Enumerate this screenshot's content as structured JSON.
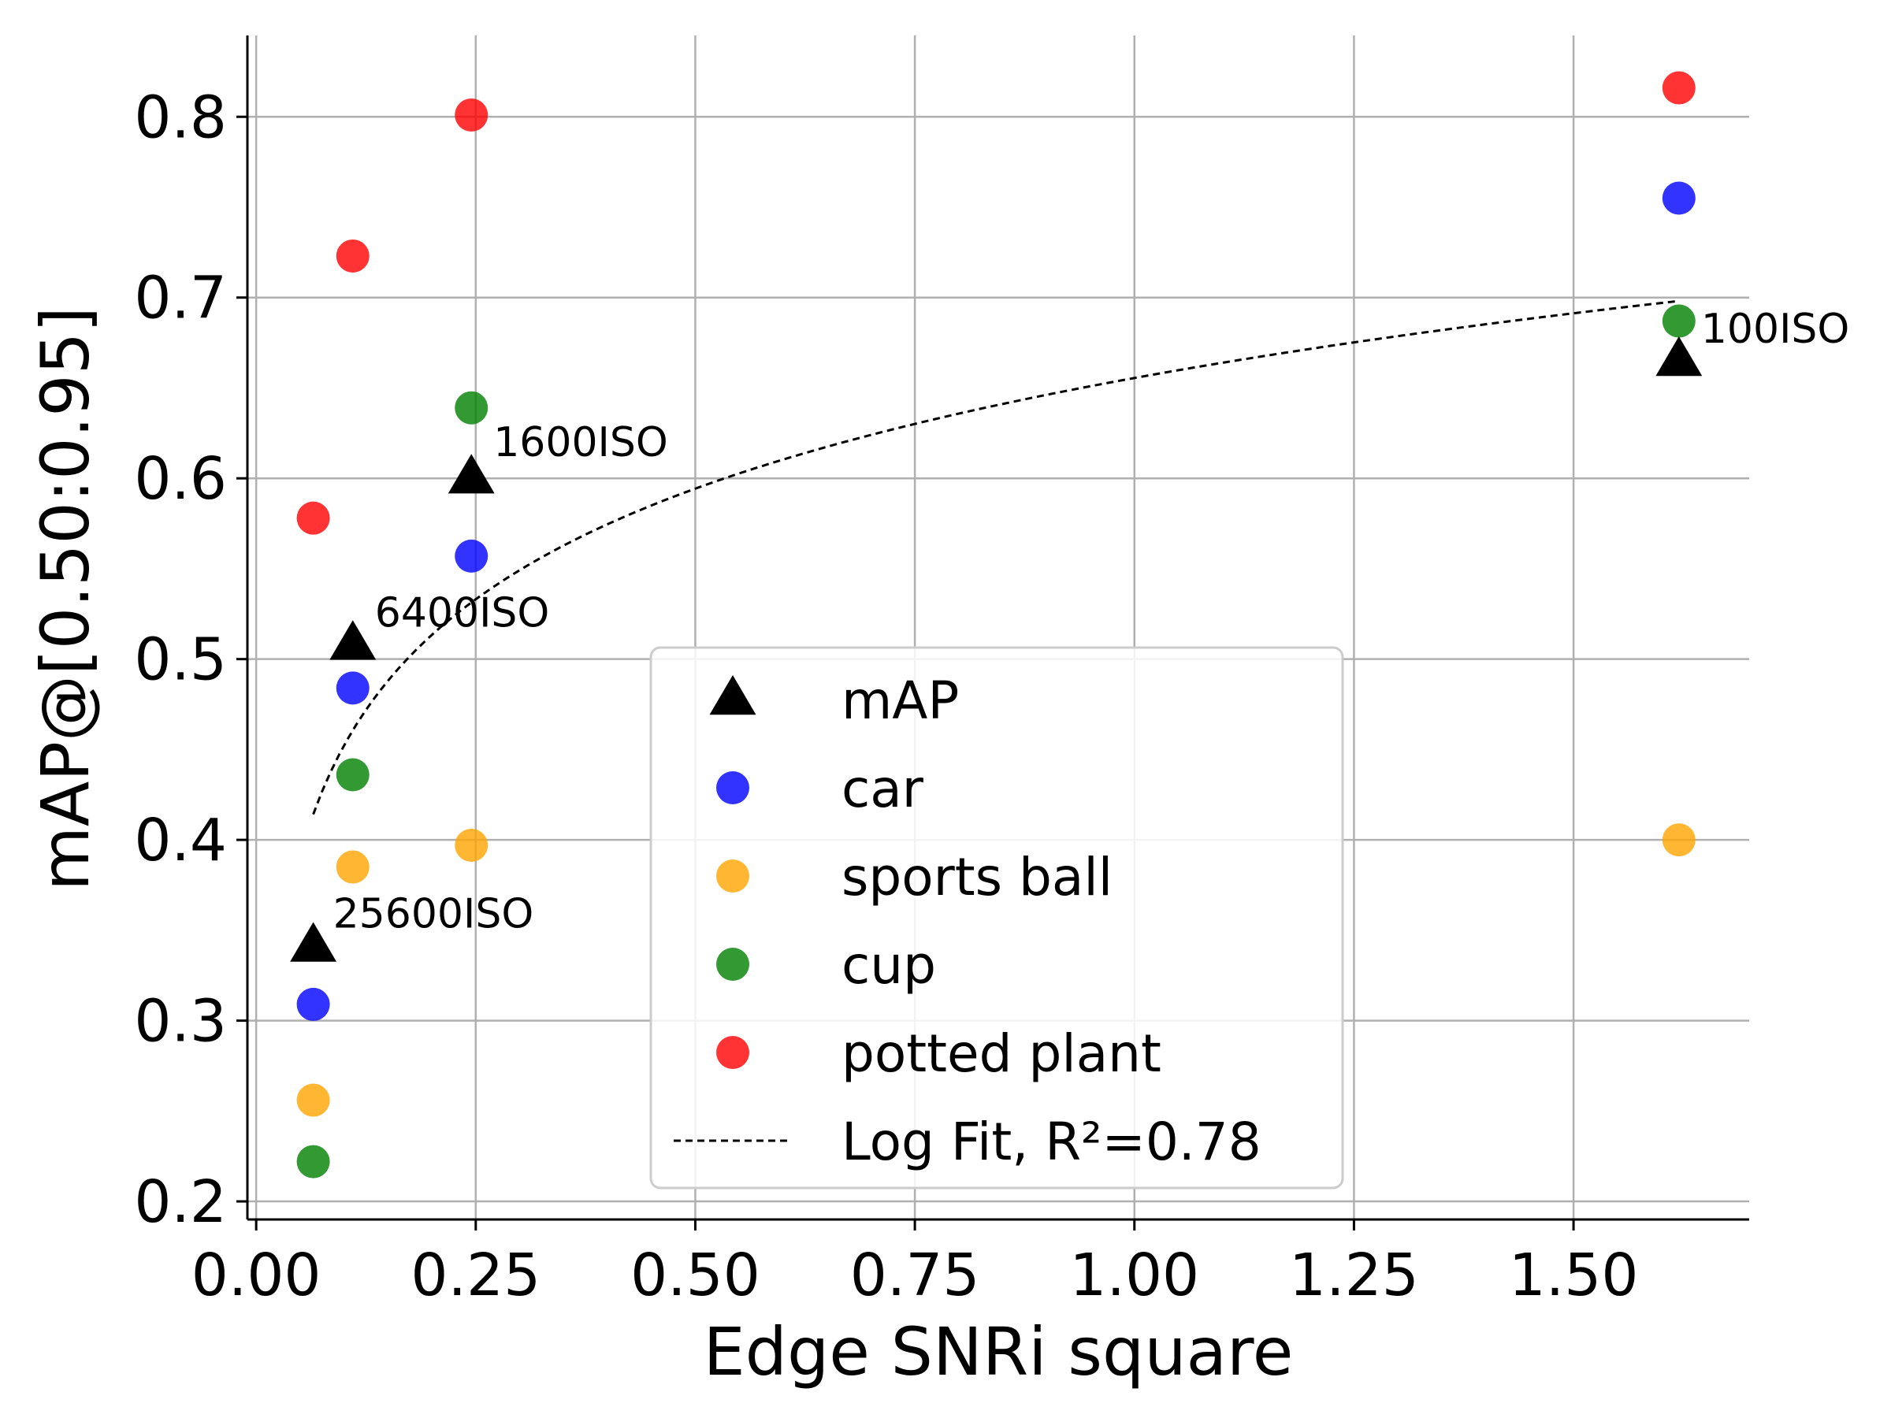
{
  "chart_data": {
    "type": "scatter",
    "title": "",
    "xlabel": "Edge SNRi square",
    "ylabel": "mAP@[0.50:0.95]",
    "xlim": [
      -0.01,
      1.7
    ],
    "ylim": [
      0.19,
      0.845
    ],
    "xticks": [
      0.0,
      0.25,
      0.5,
      0.75,
      1.0,
      1.25,
      1.5
    ],
    "xtick_labels": [
      "0.00",
      "0.25",
      "0.50",
      "0.75",
      "1.00",
      "1.25",
      "1.50"
    ],
    "yticks": [
      0.2,
      0.3,
      0.4,
      0.5,
      0.6,
      0.7,
      0.8
    ],
    "ytick_labels": [
      "0.2",
      "0.3",
      "0.4",
      "0.5",
      "0.6",
      "0.7",
      "0.8"
    ],
    "grid": true,
    "legend_position": "lower-right",
    "x": [
      0.065,
      0.11,
      0.245,
      1.62
    ],
    "series": [
      {
        "name": "mAP",
        "marker": "triangle",
        "color": "#000000",
        "values": [
          0.341,
          0.508,
          0.6,
          0.665
        ]
      },
      {
        "name": "car",
        "marker": "circle",
        "color": "#0000ff",
        "values": [
          0.309,
          0.484,
          0.557,
          0.755
        ]
      },
      {
        "name": "sports ball",
        "marker": "circle",
        "color": "#ffa500",
        "values": [
          0.256,
          0.385,
          0.397,
          0.4
        ]
      },
      {
        "name": "cup",
        "marker": "circle",
        "color": "#008000",
        "values": [
          0.222,
          0.436,
          0.639,
          0.687
        ]
      },
      {
        "name": "potted plant",
        "marker": "circle",
        "color": "#ff0000",
        "values": [
          0.578,
          0.723,
          0.801,
          0.816
        ]
      }
    ],
    "fit": {
      "name": "Log Fit, R²=0.78",
      "style": "dashed",
      "color": "#000000",
      "x_range": [
        0.065,
        1.62
      ],
      "model": "y = a + b*ln(x)",
      "a": 0.6555,
      "b": 0.0883
    },
    "annotations": [
      {
        "text": "25600ISO",
        "x": 0.065,
        "y": 0.341
      },
      {
        "text": "6400ISO",
        "x": 0.11,
        "y": 0.508
      },
      {
        "text": "1600ISO",
        "x": 0.245,
        "y": 0.6
      },
      {
        "text": "100ISO",
        "x": 1.62,
        "y": 0.665
      }
    ]
  }
}
